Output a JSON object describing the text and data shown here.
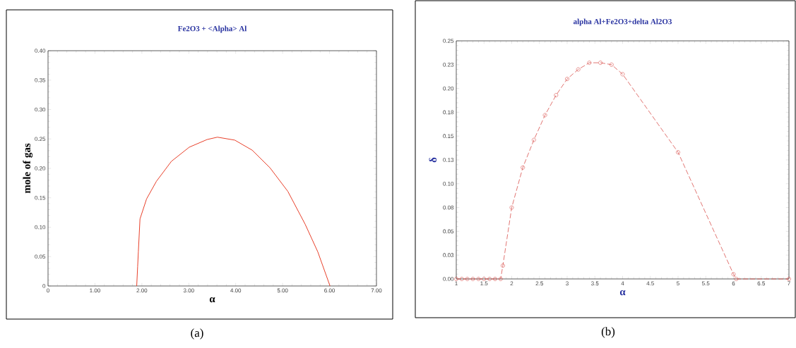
{
  "chart_data": [
    {
      "type": "line",
      "title": "Fe2O3 +  <Alpha> Al",
      "xlabel": "α",
      "ylabel": "mole of gas",
      "annotations": [
        "(a)"
      ],
      "xlim": [
        0,
        7
      ],
      "ylim": [
        0,
        0.4
      ],
      "xticks": [
        {
          "value": 0,
          "label": "0"
        },
        {
          "value": 1,
          "label": "1.00"
        },
        {
          "value": 2,
          "label": "2.00"
        },
        {
          "value": 3,
          "label": "3.00"
        },
        {
          "value": 4,
          "label": "4.00"
        },
        {
          "value": 5,
          "label": "5.00"
        },
        {
          "value": 6,
          "label": "6.00"
        },
        {
          "value": 7,
          "label": "7.00"
        }
      ],
      "yticks": [
        {
          "value": 0,
          "label": "0"
        },
        {
          "value": 0.05,
          "label": "0.05"
        },
        {
          "value": 0.1,
          "label": "0.10"
        },
        {
          "value": 0.15,
          "label": "0.15"
        },
        {
          "value": 0.2,
          "label": "0.20"
        },
        {
          "value": 0.25,
          "label": "0.25"
        },
        {
          "value": 0.3,
          "label": "0.30"
        },
        {
          "value": 0.35,
          "label": "0.35"
        },
        {
          "value": 0.4,
          "label": "0.40"
        }
      ],
      "series": [
        {
          "color": "#e8402a",
          "x": [
            1.89,
            1.91,
            1.925,
            1.96,
            2.1,
            2.31,
            2.63,
            3.01,
            3.39,
            3.61,
            3.98,
            4.35,
            4.73,
            5.11,
            5.48,
            5.75,
            6.01
          ],
          "values": [
            0,
            0.033,
            0.058,
            0.114,
            0.148,
            0.178,
            0.212,
            0.236,
            0.249,
            0.253,
            0.248,
            0.231,
            0.201,
            0.161,
            0.105,
            0.058,
            0
          ]
        }
      ]
    },
    {
      "type": "line",
      "title": "alpha Al+Fe2O3+delta Al2O3",
      "xlabel": "α",
      "ylabel": "δ",
      "annotations": [
        "(b)"
      ],
      "xlim": [
        1,
        7
      ],
      "ylim": [
        0,
        0.25
      ],
      "marker": "circle",
      "line_style": "dashed",
      "xticks": [
        1,
        1.5,
        2,
        2.5,
        3,
        3.5,
        4,
        4.5,
        5,
        5.5,
        6,
        6.5,
        7
      ],
      "yticks": [
        {
          "value": 0,
          "label": "0.00"
        },
        {
          "value": 0.025,
          "label": "0.03"
        },
        {
          "value": 0.05,
          "label": "0.05"
        },
        {
          "value": 0.075,
          "label": "0.08"
        },
        {
          "value": 0.1,
          "label": "0.10"
        },
        {
          "value": 0.125,
          "label": "0.13"
        },
        {
          "value": 0.15,
          "label": "0.15"
        },
        {
          "value": 0.175,
          "label": "0.18"
        },
        {
          "value": 0.2,
          "label": "0.20"
        },
        {
          "value": 0.225,
          "label": "0.23"
        },
        {
          "value": 0.25,
          "label": "0.25"
        }
      ],
      "series": [
        {
          "color": "#d9534f",
          "x": [
            1,
            1.1,
            1.2,
            1.3,
            1.4,
            1.5,
            1.6,
            1.7,
            1.8,
            1.84,
            2,
            2.2,
            2.4,
            2.6,
            2.8,
            3,
            3.2,
            3.4,
            3.6,
            3.8,
            4,
            5,
            6,
            6.05,
            7
          ],
          "values": [
            0,
            0,
            0,
            0,
            0,
            0,
            0,
            0,
            0,
            0.014,
            0.075,
            0.117,
            0.146,
            0.172,
            0.193,
            0.21,
            0.22,
            0.227,
            0.227,
            0.225,
            0.215,
            0.133,
            0.005,
            0,
            0
          ]
        }
      ]
    }
  ]
}
